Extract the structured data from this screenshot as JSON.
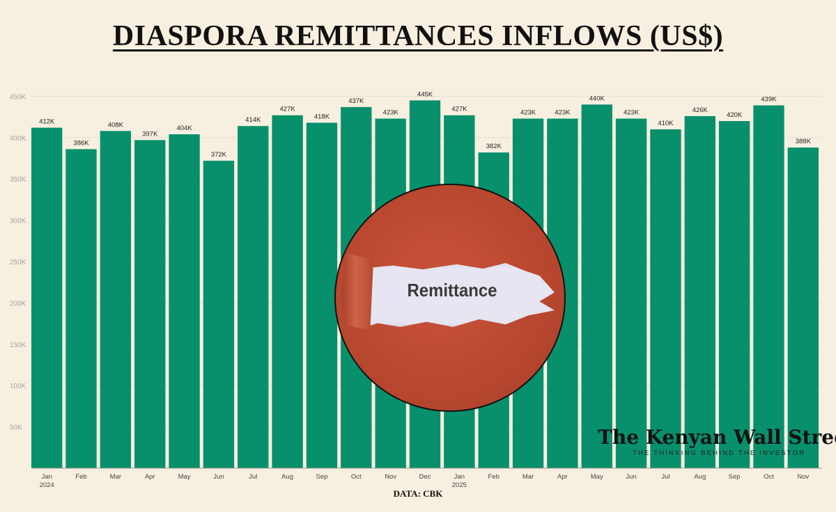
{
  "title": "DIASPORA REMITTANCES INFLOWS (US$)",
  "source": "DATA: CBK",
  "badge_text": "Remittance",
  "logo": {
    "name": "The Kenyan Wall Street",
    "tagline": "THE THINKING BEHIND THE INVESTOR"
  },
  "colors": {
    "bar": "#07906b",
    "background": "#f7f0e1",
    "badge": "#b8472f"
  },
  "chart_data": {
    "type": "bar",
    "categories": [
      "Jan 2024",
      "Feb",
      "Mar",
      "Apr",
      "May",
      "Jun",
      "Jul",
      "Aug",
      "Sep",
      "Oct",
      "Nov",
      "Dec",
      "Jan 2025",
      "Feb",
      "Mar",
      "Apr",
      "May",
      "Jun",
      "Jul",
      "Aug",
      "Sep",
      "Oct",
      "Nov"
    ],
    "values": [
      412000,
      386000,
      408000,
      397000,
      404000,
      372000,
      414000,
      427000,
      418000,
      437000,
      423000,
      445000,
      427000,
      382000,
      423000,
      423000,
      440000,
      423000,
      410000,
      426000,
      420000,
      439000,
      388000
    ],
    "data_labels": [
      "412K",
      "386K",
      "408K",
      "397K",
      "404K",
      "372K",
      "414K",
      "427K",
      "418K",
      "437K",
      "423K",
      "445K",
      "427K",
      "382K",
      "423K",
      "423K",
      "440K",
      "423K",
      "410K",
      "426K",
      "420K",
      "439K",
      "388K"
    ],
    "x_tick_labels": [
      [
        "Jan",
        "2024"
      ],
      [
        "Feb"
      ],
      [
        "Mar"
      ],
      [
        "Apr"
      ],
      [
        "May"
      ],
      [
        "Jun"
      ],
      [
        "Jul"
      ],
      [
        "Aug"
      ],
      [
        "Sep"
      ],
      [
        "Oct"
      ],
      [
        "Nov"
      ],
      [
        "Dec"
      ],
      [
        "Jan",
        "2025"
      ],
      [
        "Feb"
      ],
      [
        "Mar"
      ],
      [
        "Apr"
      ],
      [
        "May"
      ],
      [
        "Jun"
      ],
      [
        "Jul"
      ],
      [
        "Aug"
      ],
      [
        "Sep"
      ],
      [
        "Oct"
      ],
      [
        "Nov"
      ]
    ],
    "y_ticks": [
      50000,
      100000,
      150000,
      200000,
      250000,
      300000,
      350000,
      400000,
      450000
    ],
    "y_tick_labels": [
      "50K",
      "100K",
      "150K",
      "200K",
      "250K",
      "300K",
      "350K",
      "400K",
      "450K"
    ],
    "ylim": [
      0,
      450000
    ],
    "grid": true,
    "legend": "none"
  }
}
